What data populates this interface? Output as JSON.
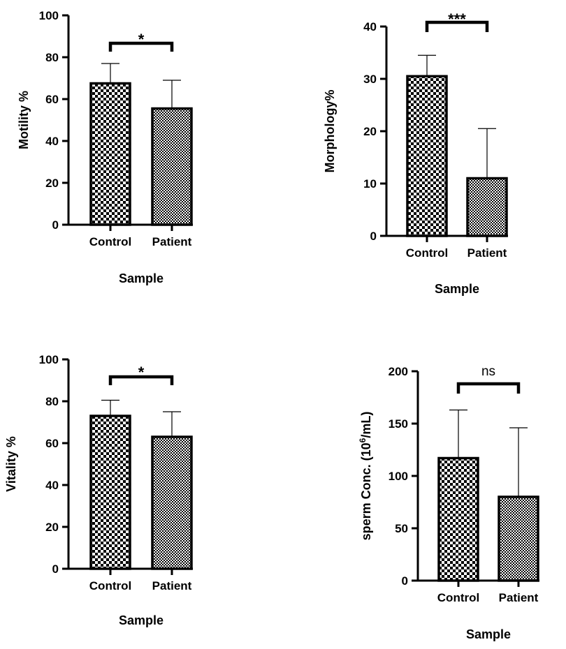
{
  "chart_data": [
    {
      "type": "bar",
      "categories": [
        "Control",
        "Patient"
      ],
      "values": [
        67.5,
        55.5
      ],
      "errors": [
        9.5,
        13.5
      ],
      "xlabel": "Sample",
      "ylabel": "Motility %",
      "ylim": [
        0,
        100
      ],
      "yticks": [
        0,
        20,
        40,
        60,
        80,
        100
      ],
      "significance": "*",
      "grid": false
    },
    {
      "type": "bar",
      "categories": [
        "Control",
        "Patient"
      ],
      "values": [
        30.5,
        11
      ],
      "errors": [
        4,
        9.5
      ],
      "xlabel": "Sample",
      "ylabel": "Morphology%",
      "ylim": [
        0,
        40
      ],
      "yticks": [
        0,
        10,
        20,
        30,
        40
      ],
      "significance": "***",
      "grid": false
    },
    {
      "type": "bar",
      "categories": [
        "Control",
        "Patient"
      ],
      "values": [
        73,
        63
      ],
      "errors": [
        7.5,
        12
      ],
      "xlabel": "Sample",
      "ylabel": "Vitality %",
      "ylim": [
        0,
        100
      ],
      "yticks": [
        0,
        20,
        40,
        60,
        80,
        100
      ],
      "significance": "*",
      "grid": false
    },
    {
      "type": "bar",
      "categories": [
        "Control",
        "Patient"
      ],
      "values": [
        117,
        80
      ],
      "errors": [
        46,
        66
      ],
      "xlabel": "Sample",
      "ylabel_main": "sperm Conc. (10",
      "ylabel_sup": "6",
      "ylabel_tail": "/mL)",
      "ylim": [
        0,
        200
      ],
      "yticks": [
        0,
        50,
        100,
        150,
        200
      ],
      "significance": "ns",
      "grid": false
    }
  ]
}
